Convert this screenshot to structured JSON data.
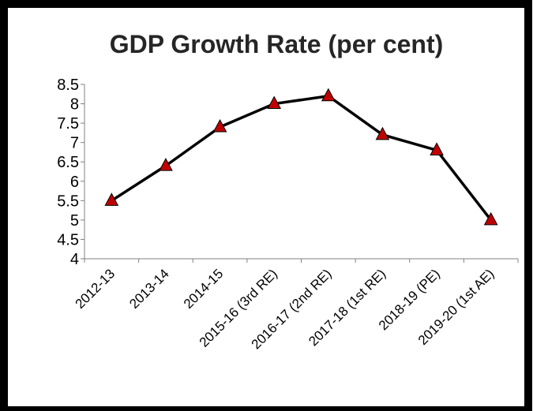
{
  "chart_data": {
    "type": "line",
    "title": "GDP Growth Rate (per cent)",
    "xlabel": "",
    "ylabel": "",
    "categories": [
      "2012-13",
      "2013-14",
      "2014-15",
      "2015-16 (3rd RE)",
      "2016-17 (2nd RE)",
      "2017-18 (1st RE)",
      "2018-19 (PE)",
      "2019-20 (1st AE)"
    ],
    "series": [
      {
        "values": [
          5.5,
          6.4,
          7.4,
          8.0,
          8.2,
          7.2,
          6.8,
          5.0
        ]
      }
    ],
    "ylim": [
      4,
      8.5
    ],
    "yticks": [
      "4",
      "4.5",
      "5",
      "5.5",
      "6",
      "6.5",
      "7",
      "7.5",
      "8",
      "8.5"
    ],
    "grid": false,
    "legend": "none",
    "colors": {
      "line": "#000000",
      "marker_fill": "#c00000",
      "marker_stroke": "#000000",
      "frame": "#000000",
      "background": "#ffffff"
    }
  }
}
